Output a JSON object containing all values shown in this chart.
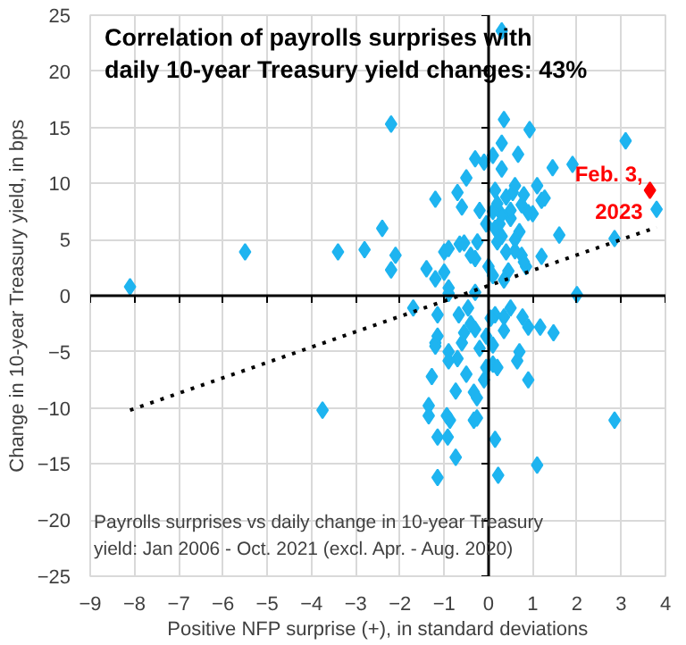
{
  "chart_data": {
    "type": "scatter",
    "title": "Correlation of payrolls surprises with daily 10-year Treasury yield changes: 43%",
    "xlabel": "Positive NFP surprise (+), in standard deviations",
    "ylabel": "Change in 10-year Treasury yield, in bps",
    "xlim": [
      -9,
      4
    ],
    "xticks": [
      -9,
      -8,
      -7,
      -6,
      -5,
      -4,
      -3,
      -2,
      -1,
      0,
      1,
      2,
      3,
      4
    ],
    "ylim": [
      -25,
      25
    ],
    "yticks": [
      -25,
      -20,
      -15,
      -10,
      -5,
      0,
      5,
      10,
      15,
      20,
      25
    ],
    "grid": true,
    "marker": "diamond",
    "annotations": [
      "Payrolls surprises vs daily change in 10-year Treasury yield: Jan 2006 - Oct. 2021  (excl. Apr. - Aug. 2020)",
      {
        "text": "Feb. 3, 2023",
        "x": 3.65,
        "y": 9.4
      }
    ],
    "series": [
      {
        "color": "#1eb4f0",
        "x": [
          -8.1,
          -5.5,
          -3.4,
          -2.8,
          -2.4,
          -2.2,
          -2.1,
          -2.2,
          -1.7,
          -1.4,
          -1.2,
          -1.2,
          -1.0,
          -0.9,
          -0.9,
          -1.0,
          -0.9,
          -0.7,
          -0.6,
          -0.65,
          -0.55,
          -0.5,
          -0.3,
          -0.3,
          -0.4,
          -0.25,
          -0.2,
          -0.1,
          -0.3,
          0,
          0.1,
          0.1,
          0.15,
          0.2,
          0.3,
          0.35,
          0.3,
          0.3,
          0.25,
          0.3,
          0.4,
          0.5,
          0.55,
          0.67,
          0.7,
          0.75,
          0.75,
          0.85,
          0.93,
          1.0,
          1.1,
          1.2,
          1.27,
          1.2,
          1.45,
          1.6,
          1.9,
          2.0,
          2.85,
          3.1,
          3.8,
          0.4,
          0.6,
          0.8,
          0.9,
          0.5,
          0.3,
          0.1,
          0.2,
          0.6,
          0.8,
          0.45,
          0.15,
          -0.05,
          0.6,
          0.35,
          -1.15,
          -0.67,
          -0.46,
          0.15,
          0.35,
          0.5,
          0.77,
          0.9,
          1.17,
          1.47,
          0.35,
          0.7,
          0.65,
          -1.2,
          -1.15,
          -0.9,
          -0.9,
          -0.6,
          -0.55,
          -0.4,
          -0.2,
          -0.05,
          0.1,
          0.1,
          0.2,
          -0.05,
          -0.1,
          -0.5,
          -0.74,
          -0.33,
          -0.26,
          -1.28,
          0.9,
          -3.75,
          -1.35,
          -1.35,
          -0.94,
          -0.87,
          -0.33,
          -0.26,
          -1.15,
          -0.92,
          -0.74,
          0.15,
          -1.15,
          0.22,
          1.1,
          2.85,
          -1.2,
          -0.3,
          0.05,
          -0.7
        ],
        "values": [
          0.8,
          3.9,
          3.9,
          4.1,
          6.0,
          15.3,
          3.6,
          2.3,
          -1.1,
          2.4,
          8.6,
          1.5,
          2.1,
          0.7,
          0.2,
          3.9,
          4.2,
          9.2,
          7.9,
          4.6,
          4.7,
          10.5,
          12.2,
          3.3,
          3.6,
          4.8,
          7.6,
          11.9,
          0.3,
          2.6,
          1.8,
          12.5,
          9.4,
          8.2,
          23.6,
          15.7,
          13.6,
          11.3,
          6.4,
          5.3,
          3.9,
          6.9,
          9.2,
          12.6,
          5.7,
          8.1,
          3.6,
          2.6,
          14.8,
          7.3,
          9.8,
          8.5,
          8.7,
          3.5,
          11.4,
          5.4,
          11.7,
          0.1,
          5.1,
          13.8,
          7.7,
          8.8,
          9.8,
          9.0,
          7.4,
          7.6,
          7.2,
          7.5,
          4.8,
          4.0,
          3.0,
          2.2,
          6.0,
          6.4,
          5.0,
          1.4,
          -1.7,
          -1.7,
          -1.1,
          -1.7,
          -1.9,
          -1.1,
          -1.9,
          -2.8,
          -2.8,
          -3.3,
          -3.1,
          -5.0,
          -5.8,
          -4.2,
          -3.6,
          -5.0,
          -5.8,
          -4.2,
          -3.3,
          -2.5,
          -4.7,
          -3.6,
          -4.4,
          -6.1,
          -6.4,
          -6.4,
          -7.5,
          -7.0,
          -8.5,
          -8.6,
          -9.1,
          -7.2,
          -7.5,
          -10.2,
          -9.8,
          -10.7,
          -10.7,
          -11.1,
          -11.1,
          -10.9,
          -12.6,
          -12.6,
          -14.4,
          -12.8,
          -16.2,
          -16.0,
          -15.1,
          -11.1,
          -4.5,
          -3.0,
          -2.0,
          -5.6
        ]
      },
      {
        "color": "#ff0000",
        "x": [
          3.65
        ],
        "values": [
          9.4
        ]
      },
      {
        "type": "line",
        "color": "#000000",
        "line_style": "dotted",
        "marker": "none",
        "x": [
          -8.1,
          3.8
        ],
        "values": [
          -10.2,
          6.1
        ]
      }
    ]
  }
}
